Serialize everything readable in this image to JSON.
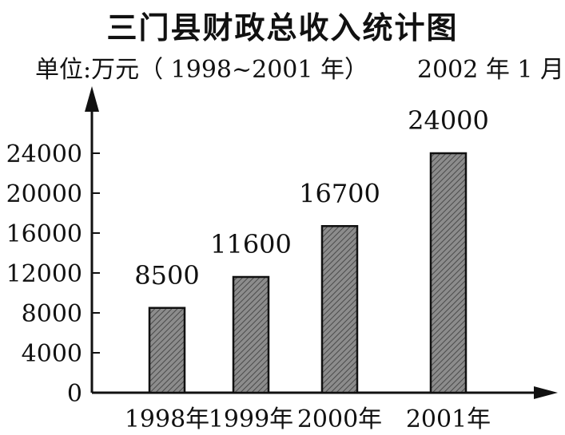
{
  "chart_data": {
    "type": "bar",
    "title": "三门县财政总收入统计图",
    "unit_note": "单位:万元（ 1998~2001 年）",
    "date_note": "2002 年 1 月",
    "xlabel": "",
    "ylabel": "",
    "categories": [
      "1998年",
      "1999年",
      "2000年",
      "2001年"
    ],
    "values": [
      8500,
      11600,
      16700,
      24000
    ],
    "data_labels": [
      "8500",
      "11600",
      "16700",
      "24000"
    ],
    "yticks": [
      "0",
      "4000",
      "8000",
      "12000",
      "16000",
      "20000",
      "24000"
    ],
    "ylim": [
      0,
      28000
    ],
    "grid": false,
    "legend": "none",
    "bar_fill": "#7a7a7a"
  }
}
